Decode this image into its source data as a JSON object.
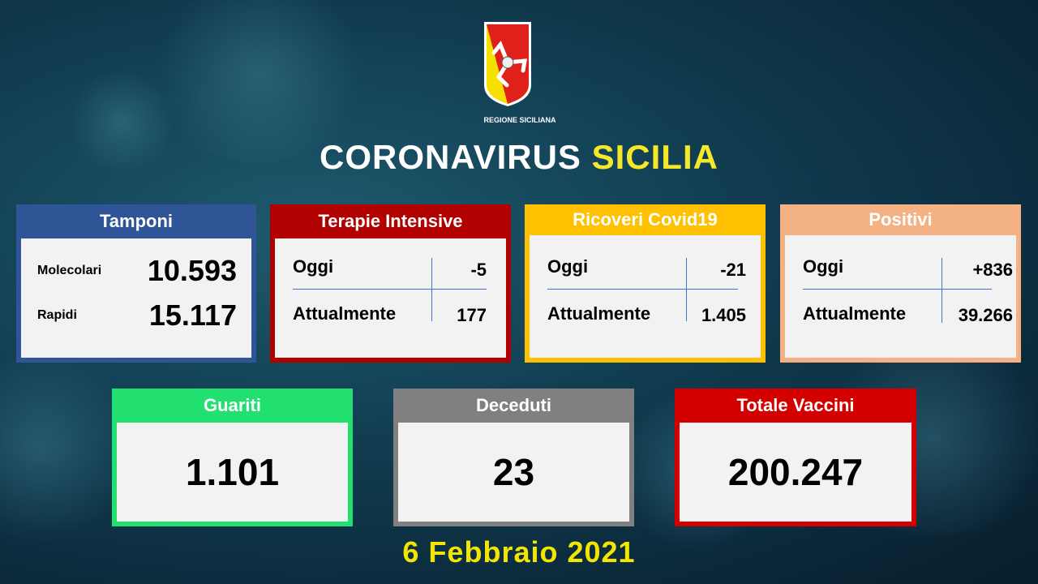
{
  "logo": {
    "text": "REGIONE SICILIANA"
  },
  "title": {
    "part1": "CORONAVIRUS",
    "part2": "SICILIA"
  },
  "tamponi": {
    "title": "Tamponi",
    "color": "#2f5597",
    "rows": [
      {
        "label": "Molecolari",
        "value": "10.593"
      },
      {
        "label": "Rapidi",
        "value": "15.117"
      }
    ]
  },
  "terapie": {
    "title": "Terapie Intensive",
    "color": "#b00000",
    "oggi_label": "Oggi",
    "oggi": "-5",
    "attual_label": "Attualmente",
    "attual": "177"
  },
  "ricoveri": {
    "title": "Ricoveri Covid19",
    "color": "#ffc000",
    "oggi_label": "Oggi",
    "oggi": "-21",
    "attual_label": "Attualmente",
    "attual": "1.405"
  },
  "positivi": {
    "title": "Positivi",
    "color": "#f4b183",
    "oggi_label": "Oggi",
    "oggi": "+836",
    "attual_label": "Attualmente",
    "attual": "39.266"
  },
  "guariti": {
    "title": "Guariti",
    "color": "#22e070",
    "value": "1.101"
  },
  "deceduti": {
    "title": "Deceduti",
    "color": "#808080",
    "value": "23"
  },
  "vaccini": {
    "title": "Totale Vaccini",
    "color": "#d40000",
    "value": "200.247"
  },
  "date": "6 Febbraio 2021"
}
